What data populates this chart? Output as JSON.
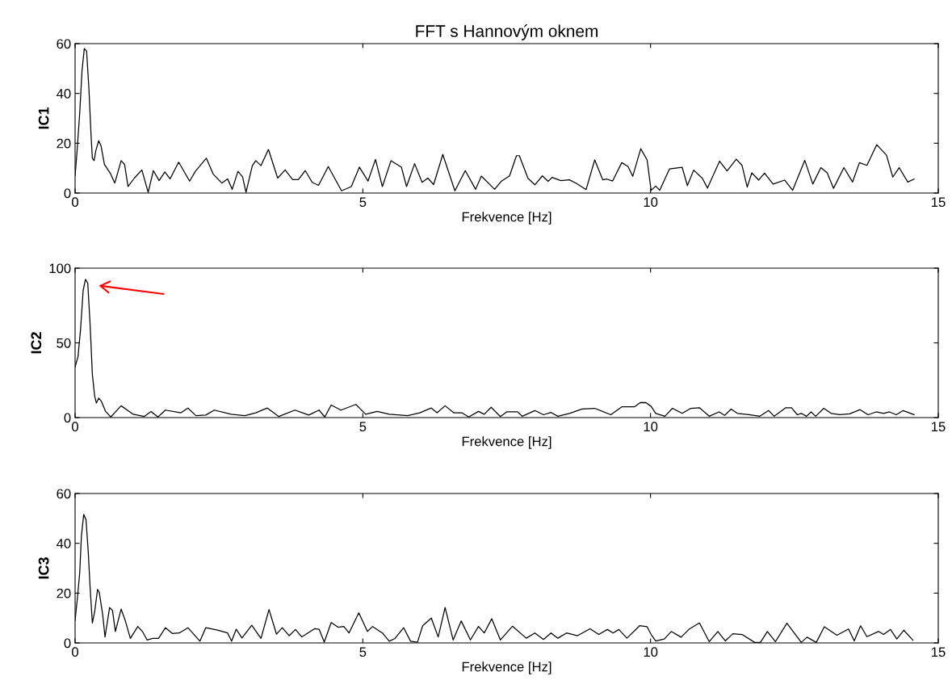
{
  "chart_data": [
    {
      "type": "line",
      "title": "FFT s Hannovým oknem",
      "xlabel": "Frekvence [Hz]",
      "ylabel": "IC1",
      "xlim": [
        0,
        15
      ],
      "xticks": [
        0,
        5,
        10,
        15
      ],
      "ylim": [
        0,
        60
      ],
      "yticks": [
        0,
        20,
        40,
        60
      ],
      "series": [
        {
          "color": "#000000",
          "x": [
            0,
            0.03,
            0.08,
            0.12,
            0.16,
            0.2,
            0.24,
            0.28,
            0.3,
            0.33,
            0.36,
            0.41,
            0.45,
            0.51,
            0.61,
            0.69,
            0.8,
            0.86,
            0.92,
            1.03,
            1.16,
            1.27,
            1.36,
            1.46,
            1.56,
            1.65,
            1.8,
            1.99,
            2.09,
            2.28,
            2.4,
            2.55,
            2.65,
            2.73,
            2.83,
            2.91,
            2.97,
            3.08,
            3.14,
            3.23,
            3.36,
            3.52,
            3.65,
            3.78,
            3.88,
            4,
            4.12,
            4.23,
            4.4,
            4.63,
            4.8,
            4.94,
            5.09,
            5.22,
            5.34,
            5.49,
            5.67,
            5.76,
            5.9,
            6.03,
            6.13,
            6.23,
            6.39,
            6.6,
            6.78,
            6.96,
            7.06,
            7.29,
            7.41,
            7.55,
            7.67,
            7.72,
            7.87,
            7.99,
            8.12,
            8.22,
            8.29,
            8.44,
            8.59,
            8.71,
            8.88,
            9.03,
            9.17,
            9.24,
            9.34,
            9.5,
            9.61,
            9.69,
            9.83,
            9.94,
            10.01,
            10.09,
            10.16,
            10.33,
            10.55,
            10.64,
            10.75,
            10.9,
            10.99,
            11.2,
            11.33,
            11.49,
            11.59,
            11.68,
            11.76,
            11.88,
            11.98,
            12.13,
            12.33,
            12.47,
            12.68,
            12.82,
            12.96,
            13.07,
            13.18,
            13.36,
            13.51,
            13.63,
            13.76,
            13.93,
            14.1,
            14.21,
            14.32,
            14.47,
            14.58
          ],
          "values": [
            7,
            15.5,
            32,
            49,
            58,
            57,
            42,
            22,
            14,
            13,
            17,
            21,
            19,
            11.5,
            8,
            4,
            13,
            11.5,
            2.6,
            6,
            9.3,
            0.3,
            9,
            5,
            8.5,
            5.7,
            12.4,
            4.8,
            8.7,
            14,
            7.6,
            4,
            5.7,
            1.5,
            8.7,
            6.5,
            0.3,
            11,
            13,
            11,
            17.5,
            6,
            9.3,
            5.4,
            5.4,
            9,
            4.3,
            3.1,
            10.6,
            0.9,
            2.6,
            10.4,
            4.8,
            13.5,
            2.6,
            13,
            10.4,
            2.6,
            11.8,
            4.3,
            6,
            3.4,
            15.5,
            0.9,
            9,
            1.5,
            6.8,
            1.5,
            4.8,
            6.9,
            15,
            15,
            5.9,
            3.3,
            6.9,
            4.7,
            6.3,
            5,
            5.3,
            3.9,
            1.4,
            13.3,
            5.3,
            5.6,
            4.8,
            12.2,
            10.6,
            6.7,
            17.8,
            13.3,
            1.1,
            2.8,
            1.1,
            9.7,
            10.3,
            3,
            9.2,
            5.9,
            2,
            12.8,
            8.9,
            13.6,
            11.1,
            2.4,
            8.1,
            5.2,
            8,
            3.6,
            5.2,
            1.1,
            13.1,
            3.6,
            10.2,
            8.1,
            1.9,
            10.2,
            4.4,
            12.2,
            11.1,
            19.4,
            15.2,
            6.4,
            10.2,
            4.4,
            5.6
          ]
        }
      ]
    },
    {
      "type": "line",
      "xlabel": "Frekvence [Hz]",
      "ylabel": "IC2",
      "xlim": [
        0,
        15
      ],
      "xticks": [
        0,
        5,
        10,
        15
      ],
      "ylim": [
        0,
        100
      ],
      "yticks": [
        0,
        50,
        100
      ],
      "series": [
        {
          "color": "#000000",
          "x": [
            0,
            0.05,
            0.095,
            0.14,
            0.18,
            0.22,
            0.26,
            0.3,
            0.34,
            0.37,
            0.41,
            0.46,
            0.53,
            0.62,
            0.8,
            1.01,
            1.2,
            1.32,
            1.44,
            1.57,
            1.84,
            1.96,
            2.1,
            2.27,
            2.42,
            2.71,
            2.95,
            3.14,
            3.34,
            3.54,
            3.82,
            4.06,
            4.24,
            4.34,
            4.45,
            4.62,
            4.88,
            5.05,
            5.25,
            5.46,
            5.78,
            5.99,
            6.19,
            6.29,
            6.43,
            6.58,
            6.72,
            6.84,
            7.01,
            7.11,
            7.23,
            7.39,
            7.5,
            7.69,
            7.77,
            7.99,
            8.14,
            8.27,
            8.39,
            8.59,
            8.81,
            9.03,
            9.31,
            9.5,
            9.72,
            9.82,
            9.92,
            10.01,
            10.09,
            10.25,
            10.38,
            10.55,
            10.7,
            10.85,
            11.02,
            11.19,
            11.29,
            11.4,
            11.51,
            11.71,
            11.9,
            12.05,
            12.15,
            12.35,
            12.45,
            12.55,
            12.62,
            12.71,
            12.79,
            12.87,
            13.01,
            13.14,
            13.29,
            13.46,
            13.64,
            13.78,
            13.92,
            14.05,
            14.15,
            14.27,
            14.39,
            14.58
          ],
          "values": [
            34,
            40.6,
            59,
            85,
            92.5,
            90,
            63,
            29,
            14.4,
            9.7,
            13,
            10.7,
            4.1,
            0.4,
            7.9,
            2.2,
            0.7,
            4.1,
            0.4,
            5,
            3.2,
            6.4,
            1.3,
            1.7,
            5,
            2.2,
            1.3,
            3.2,
            6.4,
            0.7,
            5,
            1.7,
            5,
            0.4,
            8.4,
            5,
            8.8,
            2.2,
            4.1,
            2.2,
            1.3,
            3.2,
            6.4,
            3.2,
            7.9,
            3.2,
            3.2,
            0.4,
            4.1,
            2.2,
            6.9,
            0.7,
            3.8,
            3.8,
            0.9,
            4.7,
            1.9,
            3.4,
            0.9,
            2.8,
            5.7,
            6.2,
            1.9,
            7.2,
            7.2,
            10,
            10,
            7.5,
            2.8,
            0.9,
            6.2,
            2.8,
            6.2,
            6.6,
            0.9,
            3.8,
            1.5,
            5.7,
            2.8,
            1.9,
            0.9,
            4.7,
            0.9,
            6.6,
            6.6,
            1.9,
            2.8,
            0.9,
            3.8,
            0.9,
            6.2,
            2.8,
            1.9,
            2.5,
            5.3,
            1.9,
            3.8,
            2.8,
            3.8,
            1.9,
            4.7,
            1.9
          ]
        }
      ]
    },
    {
      "type": "line",
      "xlabel": "Frekvence [Hz]",
      "ylabel": "IC3",
      "xlim": [
        0,
        15
      ],
      "xticks": [
        0,
        5,
        10,
        15
      ],
      "ylim": [
        0,
        60
      ],
      "yticks": [
        0,
        20,
        40,
        60
      ],
      "series": [
        {
          "color": "#000000",
          "x": [
            0,
            0.04,
            0.08,
            0.11,
            0.15,
            0.19,
            0.23,
            0.26,
            0.3,
            0.34,
            0.39,
            0.42,
            0.48,
            0.52,
            0.6,
            0.65,
            0.7,
            0.8,
            0.87,
            0.96,
            1.09,
            1.17,
            1.25,
            1.35,
            1.45,
            1.57,
            1.69,
            1.81,
            1.96,
            2.17,
            2.27,
            2.46,
            2.65,
            2.72,
            2.8,
            2.9,
            3.07,
            3.23,
            3.37,
            3.5,
            3.6,
            3.72,
            3.83,
            3.94,
            4.16,
            4.24,
            4.33,
            4.45,
            4.57,
            4.67,
            4.76,
            4.93,
            5.08,
            5.17,
            5.34,
            5.46,
            5.56,
            5.71,
            5.83,
            5.95,
            6.04,
            6.19,
            6.31,
            6.43,
            6.57,
            6.71,
            6.87,
            7.01,
            7.11,
            7.24,
            7.39,
            7.6,
            7.84,
            7.99,
            8.14,
            8.27,
            8.39,
            8.54,
            8.73,
            8.95,
            9.1,
            9.25,
            9.35,
            9.45,
            9.59,
            9.81,
            9.94,
            10.01,
            10.09,
            10.24,
            10.36,
            10.53,
            10.68,
            10.85,
            11.02,
            11.17,
            11.3,
            11.43,
            11.59,
            11.81,
            11.91,
            12.03,
            12.17,
            12.37,
            12.62,
            12.72,
            12.88,
            13.02,
            13.24,
            13.44,
            13.54,
            13.65,
            13.76,
            13.96,
            14.05,
            14.17,
            14.28,
            14.4,
            14.56
          ],
          "values": [
            9.1,
            18,
            28,
            43,
            51.6,
            49.5,
            36,
            22.6,
            8,
            12.5,
            21.5,
            20.3,
            11.3,
            2.4,
            14.2,
            13,
            4.6,
            13.6,
            9.1,
            1.8,
            6.6,
            4.6,
            1.2,
            1.8,
            1.8,
            6.1,
            3.8,
            4,
            6.1,
            0.7,
            6.1,
            5.2,
            4,
            0.7,
            5.5,
            2,
            7.1,
            1.8,
            13.4,
            3.5,
            6.1,
            2.9,
            5.4,
            2.4,
            5.7,
            5.5,
            0.3,
            8.2,
            6.3,
            6.6,
            4,
            12.1,
            4.6,
            6.6,
            4,
            0.7,
            1.8,
            6.1,
            0.7,
            0.3,
            6.9,
            10,
            2.4,
            14.2,
            1.2,
            8.8,
            1.2,
            6.6,
            4,
            9.7,
            1.2,
            6.7,
            1.9,
            4,
            1.4,
            4,
            1.9,
            4,
            2.9,
            5.7,
            3.4,
            5.4,
            4,
            5.4,
            1.9,
            6.9,
            6.5,
            3.4,
            0.8,
            1.6,
            4.6,
            2.3,
            5.7,
            8,
            0.5,
            4.6,
            0.8,
            3.7,
            3.4,
            0.2,
            0.2,
            4.6,
            0.5,
            7.9,
            0.2,
            2.3,
            0.2,
            6.5,
            3.1,
            5.6,
            0.8,
            6.9,
            2.5,
            4.6,
            3.4,
            5.4,
            1.6,
            5.1,
            1.1
          ]
        }
      ]
    }
  ]
}
